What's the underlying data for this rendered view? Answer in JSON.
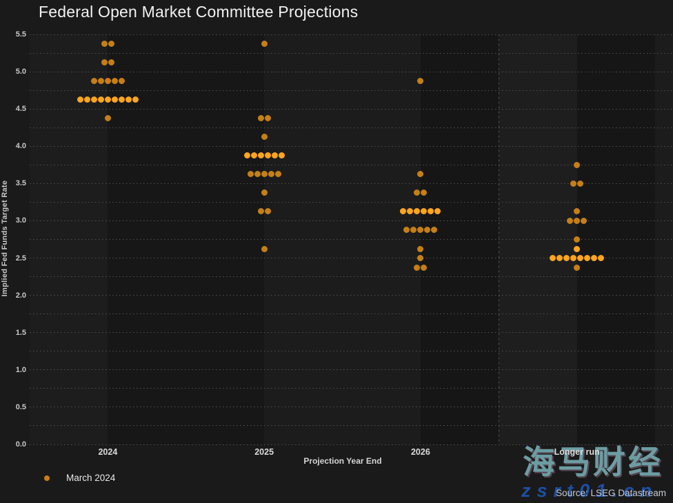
{
  "header": {
    "title": "Federal Open Market Committee Projections"
  },
  "legend": {
    "march_2024_label": "March 2024"
  },
  "source": {
    "text": "Source: LSEG Datastream"
  },
  "watermark": {
    "line1": "海马财经",
    "line2": "zsrt01.cn"
  },
  "colors": {
    "dot_normal": "#C67F16",
    "dot_median_highlight": "#FFA51E",
    "background": "#1A1A1A",
    "text": "#E8E8E8"
  },
  "chart_data": {
    "type": "scatter",
    "subtype": "fomc-dot-plot",
    "title": "Federal Open Market Committee Projections",
    "xlabel": "Projection Year End",
    "ylabel": "Implied Fed Funds Target Rate",
    "ylim": [
      0.0,
      5.5
    ],
    "ytick_step": 0.5,
    "grid_step": 0.25,
    "grid": "dotted-horizontal",
    "legend_position": "bottom-left",
    "series_name": "March 2024",
    "columns": [
      {
        "label": "2024",
        "median": 4.625,
        "dots": [
          {
            "rate": 5.375,
            "count": 2,
            "median_row": false
          },
          {
            "rate": 5.125,
            "count": 2,
            "median_row": false
          },
          {
            "rate": 4.875,
            "count": 5,
            "median_row": false
          },
          {
            "rate": 4.625,
            "count": 9,
            "median_row": true
          },
          {
            "rate": 4.375,
            "count": 1,
            "median_row": false
          }
        ]
      },
      {
        "label": "2025",
        "median": 3.875,
        "dots": [
          {
            "rate": 5.375,
            "count": 1,
            "median_row": false
          },
          {
            "rate": 4.375,
            "count": 2,
            "median_row": false
          },
          {
            "rate": 4.125,
            "count": 1,
            "median_row": false
          },
          {
            "rate": 3.875,
            "count": 6,
            "median_row": true
          },
          {
            "rate": 3.625,
            "count": 5,
            "median_row": false
          },
          {
            "rate": 3.375,
            "count": 1,
            "median_row": false
          },
          {
            "rate": 3.125,
            "count": 2,
            "median_row": false
          },
          {
            "rate": 2.625,
            "count": 1,
            "median_row": false
          }
        ]
      },
      {
        "label": "2026",
        "median": 3.125,
        "dots": [
          {
            "rate": 4.875,
            "count": 1,
            "median_row": false
          },
          {
            "rate": 3.625,
            "count": 1,
            "median_row": false
          },
          {
            "rate": 3.375,
            "count": 2,
            "median_row": false
          },
          {
            "rate": 3.125,
            "count": 6,
            "median_row": true
          },
          {
            "rate": 2.875,
            "count": 5,
            "median_row": false
          },
          {
            "rate": 2.625,
            "count": 1,
            "median_row": false
          },
          {
            "rate": 2.5,
            "count": 1,
            "median_row": false
          },
          {
            "rate": 2.375,
            "count": 2,
            "median_row": false
          }
        ]
      },
      {
        "label": "Longer run",
        "median": 2.5625,
        "dots": [
          {
            "rate": 3.75,
            "count": 1,
            "median_row": false
          },
          {
            "rate": 3.5,
            "count": 2,
            "median_row": false
          },
          {
            "rate": 3.125,
            "count": 1,
            "median_row": false
          },
          {
            "rate": 3.0,
            "count": 3,
            "median_row": false
          },
          {
            "rate": 2.75,
            "count": 1,
            "median_row": false
          },
          {
            "rate": 2.625,
            "count": 1,
            "median_row": true
          },
          {
            "rate": 2.5,
            "count": 8,
            "median_row": true
          },
          {
            "rate": 2.375,
            "count": 1,
            "median_row": false
          }
        ]
      }
    ]
  }
}
